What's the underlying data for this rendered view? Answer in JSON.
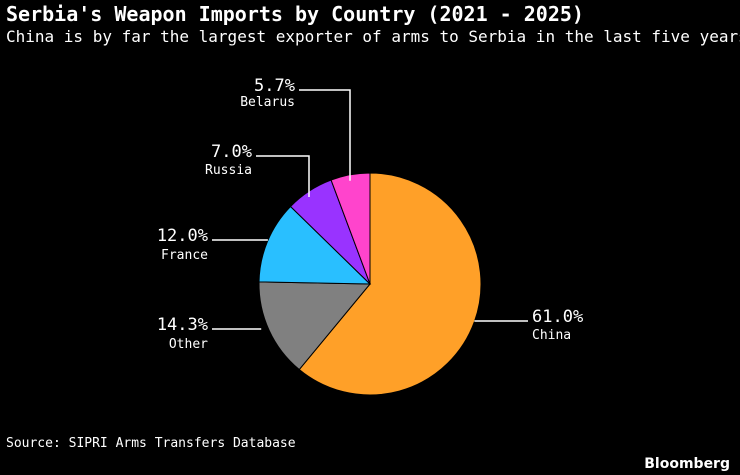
{
  "header": {
    "title": "Serbia's Weapon Imports by Country (2021 - 2025)",
    "subtitle": "China is by far the largest exporter of arms to Serbia in the last five years"
  },
  "footer": {
    "source": "Source: SIPRI Arms Transfers Database",
    "brand": "Bloomberg"
  },
  "chart_data": {
    "type": "pie",
    "title": "Serbia's Weapon Imports by Country (2021 - 2025)",
    "subtitle": "China is by far the largest exporter of arms to Serbia in the last five years",
    "start": "12 o'clock",
    "direction": "clockwise",
    "slices": [
      {
        "label": "China",
        "value": 61.0,
        "display": "61.0%",
        "color": "#ffa028"
      },
      {
        "label": "Other",
        "value": 14.3,
        "display": "14.3%",
        "color": "#808080"
      },
      {
        "label": "France",
        "value": 12.0,
        "display": "12.0%",
        "color": "#29bfff"
      },
      {
        "label": "Russia",
        "value": 7.0,
        "display": "7.0%",
        "color": "#9933ff"
      },
      {
        "label": "Belarus",
        "value": 5.7,
        "display": "5.7%",
        "color": "#ff44cc"
      }
    ]
  }
}
